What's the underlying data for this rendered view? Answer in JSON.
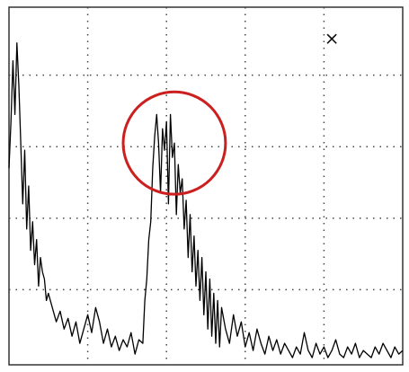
{
  "chart_data": {
    "type": "line",
    "title": "",
    "xlabel": "",
    "ylabel": "",
    "xlim": [
      0,
      100
    ],
    "ylim": [
      0,
      100
    ],
    "grid": true,
    "marker": "⨯",
    "x_gridlines": [
      20,
      40,
      60,
      80
    ],
    "y_gridlines": [
      21,
      41,
      61,
      81
    ],
    "series": [
      {
        "color": "#000000",
        "x": [
          0,
          0.5,
          1,
          1.5,
          2,
          2.5,
          3,
          3.5,
          4,
          4.5,
          5,
          5.5,
          6,
          6.5,
          7,
          7.5,
          8,
          8.5,
          9,
          9.5,
          10,
          11,
          12,
          13,
          14,
          15,
          16,
          17,
          18,
          19,
          20,
          21,
          22,
          23,
          24,
          25,
          26,
          27,
          28,
          29,
          30,
          31,
          32,
          33,
          34,
          34.5,
          35,
          35.5,
          36,
          36.5,
          37,
          37.5,
          38,
          38.5,
          39,
          39.5,
          40,
          40.5,
          41,
          41.5,
          42,
          42.5,
          43,
          43.5,
          44,
          44.5,
          45,
          45.5,
          46,
          46.5,
          47,
          47.5,
          48,
          48.5,
          49,
          49.5,
          50,
          50.5,
          51,
          51.5,
          52,
          52.5,
          53,
          53.5,
          54,
          55,
          56,
          57,
          58,
          59,
          60,
          61,
          62,
          63,
          64,
          65,
          66,
          67,
          68,
          69,
          70,
          71,
          72,
          73,
          74,
          75,
          76,
          77,
          78,
          79,
          80,
          81,
          82,
          83,
          84,
          85,
          86,
          87,
          88,
          89,
          90,
          91,
          92,
          93,
          94,
          95,
          96,
          97,
          98,
          99,
          100
        ],
        "y": [
          55,
          68,
          85,
          70,
          90,
          78,
          62,
          45,
          60,
          38,
          50,
          32,
          40,
          28,
          35,
          22,
          30,
          26,
          24,
          18,
          20,
          16,
          12,
          15,
          10,
          13,
          8,
          12,
          6,
          10,
          14,
          9,
          16,
          12,
          6,
          10,
          5,
          8,
          4,
          7,
          5,
          9,
          3,
          7,
          6,
          18,
          24,
          35,
          40,
          55,
          64,
          70,
          62,
          48,
          66,
          60,
          68,
          45,
          70,
          58,
          62,
          42,
          56,
          48,
          52,
          38,
          46,
          30,
          42,
          26,
          36,
          22,
          32,
          18,
          30,
          14,
          26,
          10,
          24,
          8,
          20,
          6,
          18,
          5,
          16,
          10,
          6,
          14,
          8,
          12,
          5,
          9,
          4,
          10,
          6,
          3,
          8,
          4,
          7,
          3,
          6,
          4,
          2,
          5,
          3,
          9,
          4,
          2,
          6,
          3,
          5,
          2,
          4,
          7,
          3,
          2,
          5,
          3,
          6,
          2,
          4,
          3,
          2,
          5,
          3,
          6,
          4,
          2,
          5,
          3,
          4
        ]
      }
    ],
    "annotations": [
      {
        "type": "circle",
        "color": "#cc1f1f",
        "center": [
          42,
          62
        ],
        "radius": 13
      }
    ]
  }
}
